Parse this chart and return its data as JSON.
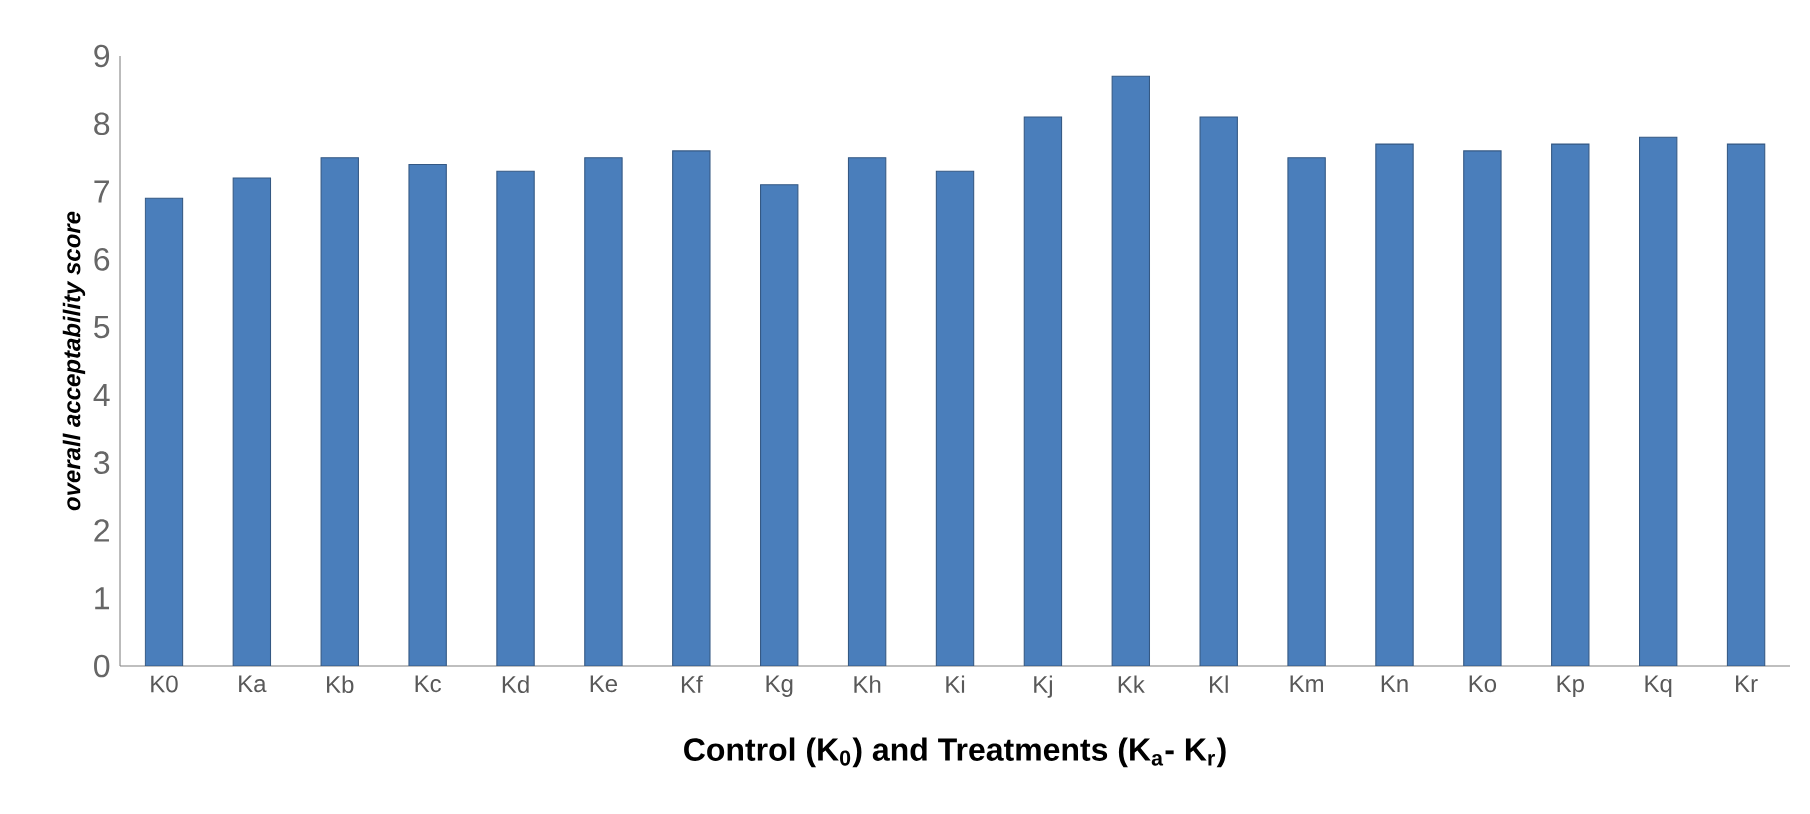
{
  "chart_data": {
    "type": "bar",
    "xlabel": "Control (K$_{0}$) and Treatments (K$_{a}$- K$_{r}$)",
    "ylabel": "overall acceptability score",
    "categories": [
      "K0",
      "Ka",
      "Kb",
      "Kc",
      "Kd",
      "Ke",
      "Kf",
      "Kg",
      "Kh",
      "Ki",
      "Kj",
      "Kk",
      "Kl",
      "Km",
      "Kn",
      "Ko",
      "Kp",
      "Kq",
      "Kr"
    ],
    "values": [
      6.9,
      7.2,
      7.5,
      7.4,
      7.3,
      7.5,
      7.6,
      7.1,
      7.5,
      7.3,
      8.1,
      8.7,
      8.1,
      7.5,
      7.7,
      7.6,
      7.7,
      7.8,
      7.7
    ],
    "color": "#4a7ebb",
    "ylim": [
      0,
      9
    ],
    "yticks": [
      0,
      1,
      2,
      3,
      4,
      5,
      6,
      7,
      8,
      9
    ],
    "grid": false
  }
}
